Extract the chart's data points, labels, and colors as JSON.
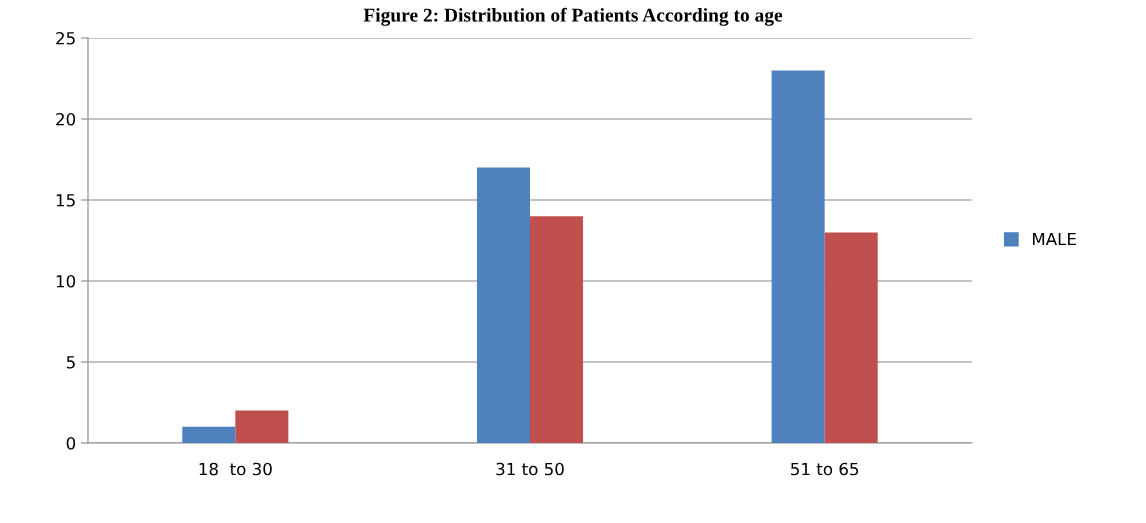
{
  "chart_data": {
    "type": "bar",
    "title": "Figure 2: Distribution of Patients According to age",
    "categories": [
      "18  to 30",
      "31 to 50",
      "51 to 65"
    ],
    "series": [
      {
        "name": "MALE",
        "color": "#4f81bd",
        "values": [
          1,
          17,
          23
        ]
      },
      {
        "color": "#c0504d",
        "values": [
          2,
          14,
          13
        ]
      }
    ],
    "ylim": [
      0,
      25
    ],
    "yticks": [
      0,
      5,
      10,
      15,
      20,
      25
    ],
    "grid": "y",
    "legend": "right"
  }
}
